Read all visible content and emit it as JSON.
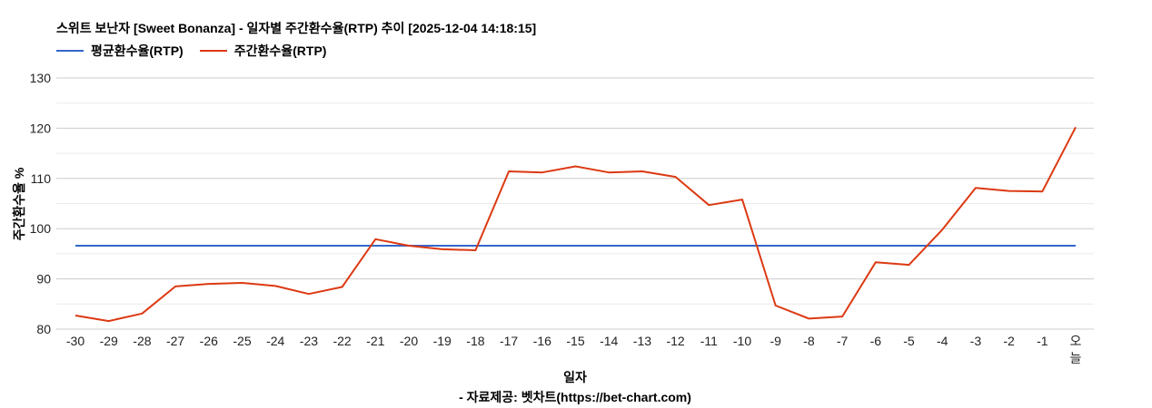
{
  "title": "스위트 보난자 [Sweet Bonanza] - 일자별 주간환수율(RTP) 추이 [2025-12-04 14:18:15]",
  "legend": [
    {
      "label": "평균환수율(RTP)",
      "color": "#3366cc"
    },
    {
      "label": "주간환수율(RTP)",
      "color": "#dc3912"
    }
  ],
  "chart_data": {
    "type": "line",
    "title": "스위트 보난자 [Sweet Bonanza] - 일자별 주간환수율(RTP) 추이 [2025-12-04 14:18:15]",
    "xlabel": "일자",
    "ylabel": "주간환수율 %",
    "ylim": [
      80,
      130
    ],
    "yticks": [
      80,
      90,
      100,
      110,
      120,
      130
    ],
    "grid": true,
    "legend_position": "top-left",
    "categories": [
      "-30",
      "-29",
      "-28",
      "-27",
      "-26",
      "-25",
      "-24",
      "-23",
      "-22",
      "-21",
      "-20",
      "-19",
      "-18",
      "-17",
      "-16",
      "-15",
      "-14",
      "-13",
      "-12",
      "-11",
      "-10",
      "-9",
      "-8",
      "-7",
      "-6",
      "-5",
      "-4",
      "-3",
      "-2",
      "-1",
      "오늘"
    ],
    "series": [
      {
        "name": "평균환수율(RTP)",
        "color": "#3366cc",
        "values": [
          96.6,
          96.6,
          96.6,
          96.6,
          96.6,
          96.6,
          96.6,
          96.6,
          96.6,
          96.6,
          96.6,
          96.6,
          96.6,
          96.6,
          96.6,
          96.6,
          96.6,
          96.6,
          96.6,
          96.6,
          96.6,
          96.6,
          96.6,
          96.6,
          96.6,
          96.6,
          96.6,
          96.6,
          96.6,
          96.6,
          96.6
        ]
      },
      {
        "name": "주간환수율(RTP)",
        "color": "#dc3912",
        "values": [
          82.7,
          81.6,
          83.1,
          88.5,
          89.0,
          89.2,
          88.6,
          87.0,
          88.4,
          97.9,
          96.6,
          95.9,
          95.7,
          111.4,
          111.2,
          112.4,
          111.2,
          111.4,
          110.3,
          104.7,
          105.8,
          84.7,
          82.1,
          82.5,
          93.3,
          92.8,
          99.8,
          108.1,
          107.5,
          107.4,
          120.2
        ]
      }
    ]
  },
  "axis": {
    "xlabel": "일자",
    "ylabel": "주간환수율 %"
  },
  "source": "- 자료제공: 벳차트(https://bet-chart.com)"
}
